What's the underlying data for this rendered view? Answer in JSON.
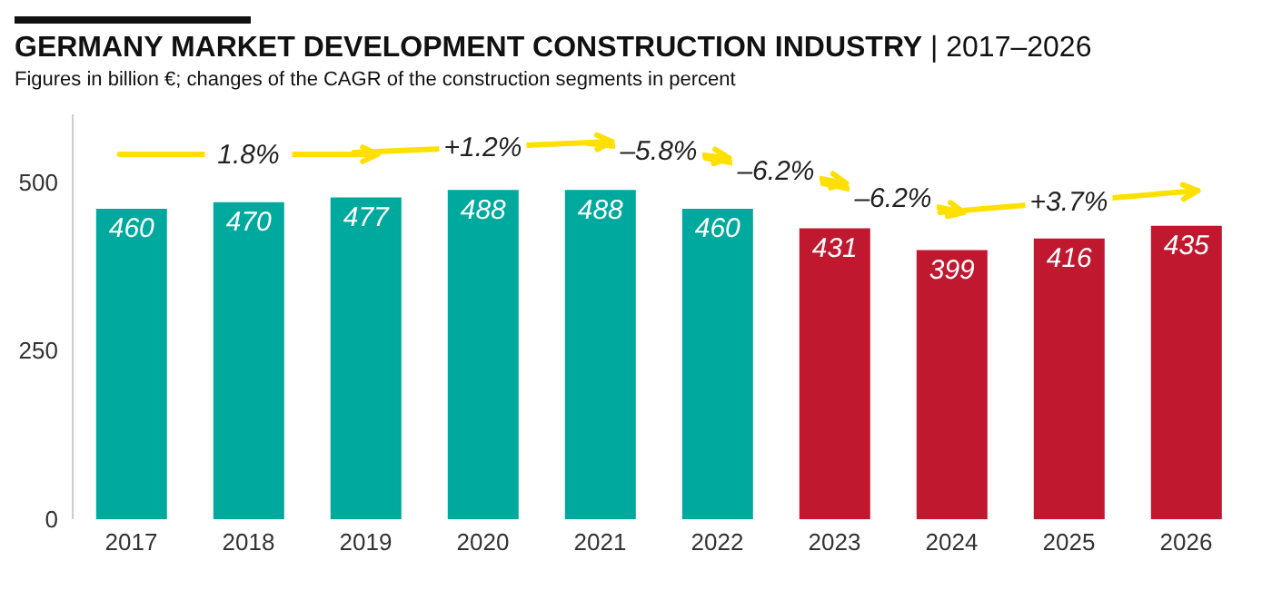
{
  "chart_data": {
    "type": "bar",
    "title": "GERMANY MARKET DEVELOPMENT CONSTRUCTION INDUSTRY",
    "subtitle": "Figures in billion €; changes of the CAGR of the construction segments in percent",
    "categories": [
      "2017",
      "2018",
      "2019",
      "2020",
      "2021",
      "2022",
      "2023",
      "2024",
      "2025",
      "2026"
    ],
    "values": [
      460,
      470,
      477,
      488,
      488,
      460,
      431,
      399,
      416,
      435
    ],
    "colors": [
      "#00a99d",
      "#00a99d",
      "#00a99d",
      "#00a99d",
      "#00a99d",
      "#00a99d",
      "#c0182f",
      "#c0182f",
      "#c0182f",
      "#c0182f"
    ],
    "ylim": [
      0,
      600
    ],
    "yticks": [
      0,
      250,
      500
    ],
    "grid": false,
    "legend": false,
    "data_labels": true,
    "annotations": [
      "| 2017–2026",
      "1.8%",
      "+1.2%",
      "–5.8%",
      "–6.2%",
      "–6.2%",
      "+3.7%"
    ]
  }
}
